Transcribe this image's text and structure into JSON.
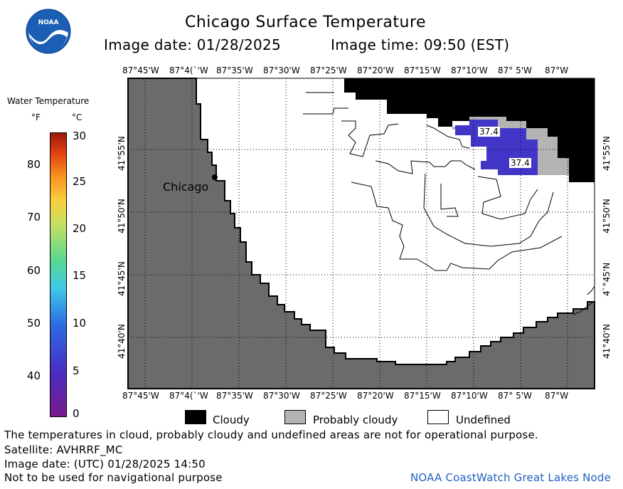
{
  "header": {
    "title": "Chicago Surface Temperature",
    "image_date": "Image date: 01/28/2025",
    "image_time": "Image time: 09:50 (EST)"
  },
  "logo": {
    "text": "NOAA"
  },
  "colorbar": {
    "title": "Water Temperature",
    "unit_f": "°F",
    "unit_c": "°C",
    "f_ticks": [
      "80",
      "70",
      "60",
      "50",
      "40"
    ],
    "c_ticks": [
      "30",
      "25",
      "20",
      "15",
      "10",
      "5",
      "0"
    ]
  },
  "map": {
    "lon_labels": [
      "87°45'W",
      "87°4(`'W",
      "87°35'W",
      "87°30'W",
      "87°25'W",
      "87°20'W",
      "87°15'W",
      "87°10'W",
      "87° 5'W",
      "87°W"
    ],
    "lat_labels_left": [
      "41°55'N",
      "41°50'N",
      "41°45'N",
      "41°40'N"
    ],
    "lat_labels_right": [
      "41°55'N",
      "41°50'N",
      "4`°45'N",
      "41°40'N"
    ],
    "city_label": "Chicago",
    "temp_labels": [
      "37.4",
      "37.4"
    ],
    "colors": {
      "land": "#6b6b6b",
      "cloud": "#000000",
      "probably_cloudy": "#b4b4b4",
      "water_cold": "#4236c8"
    }
  },
  "legend": {
    "cloudy": "Cloudy",
    "probably_cloudy": "Probably cloudy",
    "undefined": "Undefined"
  },
  "footer": {
    "note": "The temperatures in cloud, probably cloudy and undefined areas are not for operational purpose.",
    "satellite": "Satellite: AVHRRF_MC",
    "utc_date": "Image date: (UTC) 01/28/2025  14:50",
    "nav": "Not to be used for navigational purpose",
    "credit": "NOAA CoastWatch Great Lakes Node"
  }
}
